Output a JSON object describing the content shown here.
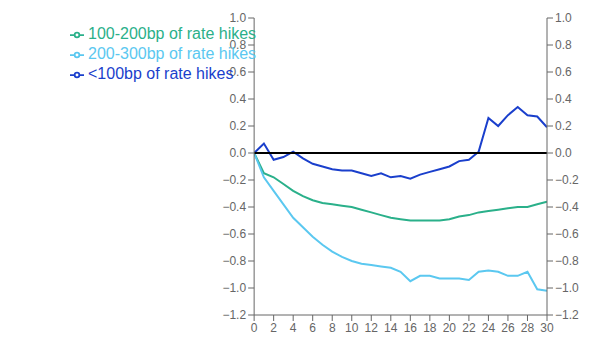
{
  "chart_data": {
    "type": "line",
    "x": [
      0,
      1,
      2,
      3,
      4,
      5,
      6,
      7,
      8,
      9,
      10,
      11,
      12,
      13,
      14,
      15,
      16,
      17,
      18,
      19,
      20,
      21,
      22,
      23,
      24,
      25,
      26,
      27,
      28,
      29,
      30
    ],
    "series": [
      {
        "name": "<100bp of rate hikes",
        "color": "#1a3fcc",
        "values": [
          0.0,
          0.07,
          -0.05,
          -0.03,
          0.01,
          -0.04,
          -0.08,
          -0.1,
          -0.12,
          -0.13,
          -0.13,
          -0.15,
          -0.17,
          -0.15,
          -0.18,
          -0.17,
          -0.19,
          -0.16,
          -0.14,
          -0.12,
          -0.1,
          -0.06,
          -0.05,
          0.01,
          0.26,
          0.2,
          0.28,
          0.34,
          0.28,
          0.27,
          0.19
        ]
      },
      {
        "name": "100-200bp of rate hikes",
        "color": "#2ab08a",
        "values": [
          0.0,
          -0.15,
          -0.18,
          -0.23,
          -0.28,
          -0.32,
          -0.35,
          -0.37,
          -0.38,
          -0.39,
          -0.4,
          -0.42,
          -0.44,
          -0.46,
          -0.48,
          -0.49,
          -0.5,
          -0.5,
          -0.5,
          -0.5,
          -0.49,
          -0.47,
          -0.46,
          -0.44,
          -0.43,
          -0.42,
          -0.41,
          -0.4,
          -0.4,
          -0.38,
          -0.36
        ]
      },
      {
        "name": "200-300bp of rate hikes",
        "color": "#5bc8f0",
        "values": [
          0.0,
          -0.18,
          -0.28,
          -0.38,
          -0.48,
          -0.55,
          -0.62,
          -0.68,
          -0.73,
          -0.77,
          -0.8,
          -0.82,
          -0.83,
          -0.84,
          -0.85,
          -0.88,
          -0.95,
          -0.91,
          -0.91,
          -0.93,
          -0.93,
          -0.93,
          -0.94,
          -0.88,
          -0.87,
          -0.88,
          -0.91,
          -0.91,
          -0.88,
          -1.01,
          -1.02
        ]
      }
    ],
    "xlim": [
      0,
      30
    ],
    "xticks": [
      0,
      2,
      4,
      6,
      8,
      10,
      12,
      14,
      16,
      18,
      20,
      22,
      24,
      26,
      28,
      30
    ],
    "ylim": [
      -1.2,
      1.0
    ],
    "yticks": [
      {
        "value": -1.2,
        "label": "−1.2"
      },
      {
        "value": -1.0,
        "label": "−1.0"
      },
      {
        "value": -0.8,
        "label": "−0.8"
      },
      {
        "value": -0.6,
        "label": "−0.6"
      },
      {
        "value": -0.4,
        "label": "−0.4"
      },
      {
        "value": -0.2,
        "label": "−0.2"
      },
      {
        "value": 0.0,
        "label": "0.0"
      },
      {
        "value": 0.2,
        "label": "0.2"
      },
      {
        "value": 0.4,
        "label": "0.4"
      },
      {
        "value": 0.6,
        "label": "0.6"
      },
      {
        "value": 0.8,
        "label": "0.8"
      },
      {
        "value": 1.0,
        "label": "1.0"
      }
    ],
    "y2lim": [
      -1.2,
      1.0
    ],
    "y2ticks": [
      {
        "value": -1.2,
        "label": "−1.2"
      },
      {
        "value": -1.0,
        "label": "−1.0"
      },
      {
        "value": -0.8,
        "label": "−0.8"
      },
      {
        "value": -0.6,
        "label": "−0.6"
      },
      {
        "value": -0.4,
        "label": "−0.4"
      },
      {
        "value": -0.2,
        "label": "−0.2"
      },
      {
        "value": 0.0,
        "label": "0.0"
      },
      {
        "value": 0.2,
        "label": "0.2"
      },
      {
        "value": 0.4,
        "label": "0.4"
      },
      {
        "value": 0.6,
        "label": "0.6"
      },
      {
        "value": 0.8,
        "label": "0.8"
      },
      {
        "value": 1.0,
        "label": "1.0"
      }
    ],
    "hline": {
      "value": 0,
      "color": "black"
    },
    "grid": false,
    "legend": "upper left"
  }
}
